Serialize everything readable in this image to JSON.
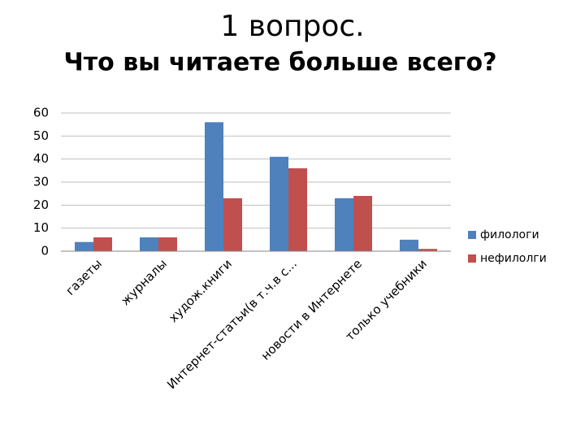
{
  "chart_data": {
    "type": "bar",
    "title": "1 вопрос.",
    "subtitle": "Что вы читаете больше всего?",
    "categories": [
      "газеты",
      "журналы",
      "худож.книги",
      "Интернет-статьи(в т.ч.в с...",
      "новости в Интернете",
      "только учебники"
    ],
    "series": [
      {
        "name": "филологи",
        "color": "#4f81bd",
        "values": [
          4,
          6,
          56,
          41,
          23,
          5
        ]
      },
      {
        "name": "нефилолги",
        "color": "#c0504d",
        "values": [
          6,
          6,
          23,
          36,
          24,
          1
        ]
      }
    ],
    "ylim": [
      0,
      60
    ],
    "yticks": [
      0,
      10,
      20,
      30,
      40,
      50,
      60
    ],
    "grid": true,
    "legend": "right"
  }
}
